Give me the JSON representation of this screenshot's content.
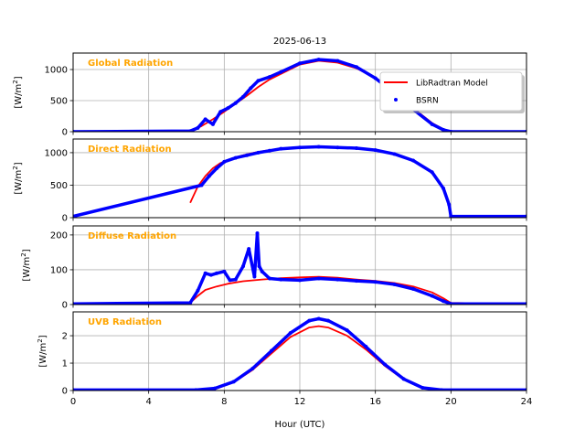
{
  "chart_data": {
    "type": "line",
    "title": "2025-06-13",
    "xlabel": "Hour (UTC)",
    "xlim": [
      0,
      24
    ],
    "xticks": [
      0,
      4,
      8,
      12,
      16,
      20,
      24
    ],
    "xtick_labels": [
      "0",
      "4",
      "8",
      "12",
      "16",
      "20",
      "24"
    ],
    "grid": true,
    "legend": {
      "placement": "right of first panel",
      "entries": [
        {
          "name": "LibRadtran Model",
          "style": "line",
          "color": "#FF0000"
        },
        {
          "name": "BSRN",
          "style": "dots",
          "color": "#0000FF"
        }
      ]
    },
    "panels": [
      {
        "label": "Global Radiation",
        "ylabel": "[W/m",
        "ylabel_sup": "2",
        "ylabel_end": "]",
        "ylim": [
          0,
          1265
        ],
        "yticks": [
          0,
          500,
          1000
        ],
        "ytick_labels": [
          "0",
          "500",
          "1000"
        ],
        "series": [
          {
            "name": "LibRadtran Model",
            "x": [
              6.2,
              6.8,
              7.4,
              8.0,
              8.6,
              9.2,
              9.8,
              10.4,
              11,
              12,
              13,
              14,
              15,
              16,
              17,
              18,
              19,
              19.6,
              20,
              24
            ],
            "y": [
              10,
              90,
              200,
              320,
              450,
              580,
              720,
              840,
              930,
              1080,
              1140,
              1110,
              1020,
              870,
              640,
              380,
              140,
              40,
              0,
              0
            ]
          },
          {
            "name": "BSRN",
            "x": [
              0,
              6.2,
              6.6,
              7.0,
              7.4,
              7.8,
              8.2,
              8.6,
              9.0,
              9.4,
              9.8,
              10.4,
              11,
              12,
              13,
              14,
              15,
              16,
              17,
              18,
              19,
              19.6,
              20,
              24
            ],
            "y": [
              0,
              10,
              60,
              200,
              120,
              320,
              380,
              460,
              560,
              700,
              820,
              880,
              960,
              1100,
              1160,
              1140,
              1040,
              860,
              620,
              360,
              120,
              30,
              0,
              0
            ]
          }
        ]
      },
      {
        "label": "Direct Radiation",
        "ylabel": "[W/m",
        "ylabel_sup": "2",
        "ylabel_end": "]",
        "ylim": [
          0,
          1210
        ],
        "yticks": [
          0,
          500,
          1000
        ],
        "ytick_labels": [
          "0",
          "500",
          "1000"
        ],
        "series": [
          {
            "name": "LibRadtran Model",
            "x": [
              6.2,
              6.6,
              7.0,
              7.4,
              7.8,
              8.4,
              9.0,
              9.6,
              10.2,
              11
            ],
            "y": [
              230,
              480,
              640,
              760,
              840,
              910,
              960,
              1000,
              1030,
              1060
            ]
          },
          {
            "name": "BSRN",
            "x": [
              0,
              6.8,
              7.2,
              7.6,
              8.0,
              8.6,
              9.2,
              9.8,
              10.4,
              11,
              12,
              13,
              14,
              15,
              16,
              17,
              18,
              19,
              19.6,
              19.9,
              20.0,
              24
            ],
            "y": [
              20,
              500,
              640,
              760,
              860,
              920,
              960,
              1000,
              1030,
              1060,
              1080,
              1090,
              1080,
              1070,
              1040,
              980,
              880,
              700,
              450,
              200,
              20,
              20
            ]
          }
        ]
      },
      {
        "label": "Diffuse Radiation",
        "ylabel": "[W/m",
        "ylabel_sup": "2",
        "ylabel_end": "]",
        "ylim": [
          0,
          226
        ],
        "yticks": [
          0,
          100,
          200
        ],
        "ytick_labels": [
          "0",
          "100",
          "200"
        ],
        "series": [
          {
            "name": "LibRadtran Model",
            "x": [
              6.2,
              6.6,
              7.0,
              7.6,
              8.2,
              9.0,
              10.0,
              11,
              12,
              13,
              14,
              15,
              16,
              17,
              18,
              19,
              19.6,
              20,
              24
            ],
            "y": [
              5,
              25,
              42,
              52,
              60,
              67,
              72,
              76,
              78,
              80,
              77,
              72,
              68,
              62,
              52,
              35,
              18,
              5,
              0
            ]
          },
          {
            "name": "BSRN",
            "x": [
              0,
              6.2,
              6.6,
              7.0,
              7.3,
              7.6,
              8.0,
              8.3,
              8.6,
              9.0,
              9.3,
              9.6,
              9.75,
              9.85,
              10.0,
              10.4,
              11,
              12,
              13,
              14,
              15,
              16,
              17,
              18,
              19,
              19.6,
              20,
              24
            ],
            "y": [
              2,
              5,
              40,
              90,
              85,
              90,
              95,
              70,
              72,
              110,
              160,
              80,
              205,
              110,
              95,
              75,
              72,
              70,
              75,
              72,
              68,
              65,
              58,
              45,
              25,
              10,
              2,
              2
            ]
          }
        ]
      },
      {
        "label": "UVB Radiation",
        "ylabel": "[W/m",
        "ylabel_sup": "2",
        "ylabel_end": "]",
        "ylim": [
          0,
          2.87
        ],
        "yticks": [
          0,
          1,
          2
        ],
        "ytick_labels": [
          "0",
          "1",
          "2"
        ],
        "series": [
          {
            "name": "LibRadtran Model",
            "x": [
              6.5,
              7.5,
              8.5,
              9.5,
              10.5,
              11.5,
              12.5,
              13.0,
              13.5,
              14.5,
              15.5,
              16.5,
              17.5,
              18.5,
              19.5,
              24
            ],
            "y": [
              0,
              0.05,
              0.3,
              0.75,
              1.35,
              1.95,
              2.3,
              2.35,
              2.3,
              2.0,
              1.5,
              0.9,
              0.4,
              0.1,
              0.01,
              0
            ]
          },
          {
            "name": "BSRN",
            "x": [
              0,
              6.5,
              7.5,
              8.5,
              9.5,
              10.5,
              11.5,
              12.5,
              13.0,
              13.5,
              14.5,
              15.5,
              16.5,
              17.5,
              18.5,
              19.5,
              24
            ],
            "y": [
              0.02,
              0.02,
              0.08,
              0.32,
              0.8,
              1.45,
              2.1,
              2.55,
              2.62,
              2.55,
              2.2,
              1.6,
              0.95,
              0.42,
              0.1,
              0.02,
              0.02
            ]
          }
        ]
      }
    ]
  }
}
